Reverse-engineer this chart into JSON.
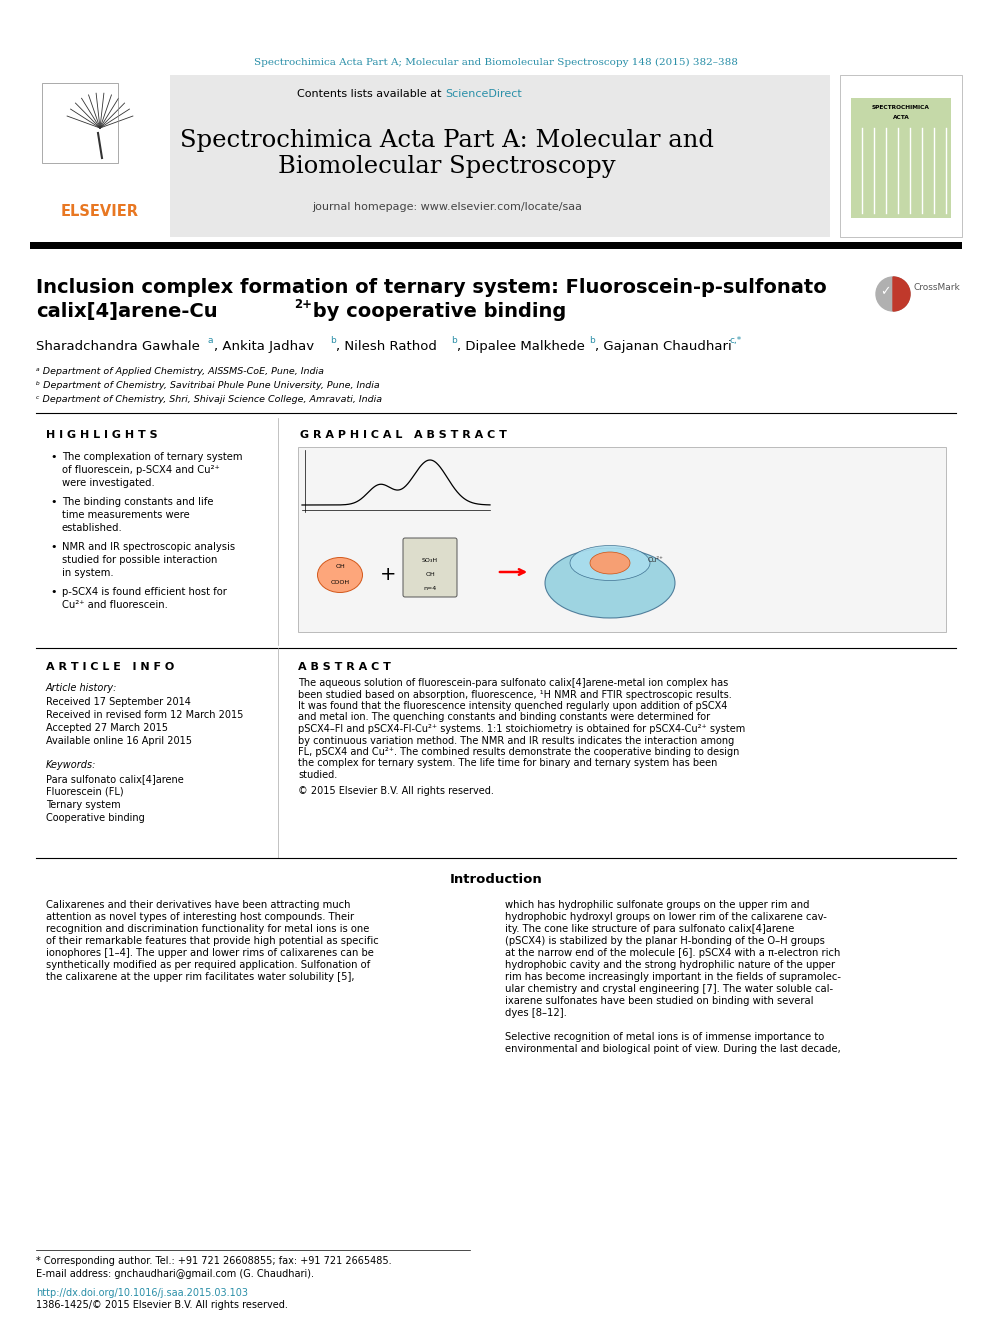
{
  "header_text": "Spectrochimica Acta Part A; Molecular and Biomolecular Spectroscopy 148 (2015) 382–388",
  "header_color": "#2a8fa8",
  "journal_name_line1": "Spectrochimica Acta Part A: Molecular and",
  "journal_name_line2": "Biomolecular Spectroscopy",
  "contents_text": "Contents lists available at ",
  "sciencedirect_text": "ScienceDirect",
  "sciencedirect_color": "#2a8fa8",
  "homepage_text": "journal homepage: www.elsevier.com/locate/saa",
  "elsevier_color": "#e87722",
  "article_title_line1": "Inclusion complex formation of ternary system: Fluoroscein-p-sulfonato",
  "article_title_line2": "calix[4]arene-Cu",
  "article_title_line2_super": "2+",
  "article_title_line3": " by cooperative binding",
  "affil_a": "ᵃ Department of Applied Chemistry, AISSMS-CoE, Pune, India",
  "affil_b": "ᵇ Department of Chemistry, Savitribai Phule Pune University, Pune, India",
  "affil_c": "ᶜ Department of Chemistry, Shri, Shivaji Science College, Amravati, India",
  "highlights_title": "H I G H L I G H T S",
  "highlight1": "The complexation of ternary system of fluorescein, p-SCX4 and Cu²⁺ were investigated.",
  "highlight2": "The binding constants and life time measurements were established.",
  "highlight3": "NMR and IR spectroscopic analysis studied for possible interaction in system.",
  "highlight4": "p-SCX4 is found efficient host for Cu²⁺ and fluorescein.",
  "graphical_abstract_title": "G R A P H I C A L   A B S T R A C T",
  "article_info_title": "A R T I C L E   I N F O",
  "article_history": "Article history:",
  "received": "Received 17 September 2014",
  "received_revised": "Received in revised form 12 March 2015",
  "accepted": "Accepted 27 March 2015",
  "available": "Available online 16 April 2015",
  "keywords_title": "Keywords:",
  "kw1": "Para sulfonato calix[4]arene",
  "kw2": "Fluorescein (FL)",
  "kw3": "Ternary system",
  "kw4": "Cooperative binding",
  "abstract_title": "A B S T R A C T",
  "abstract_text": "The aqueous solution of fluorescein-para sulfonato calix[4]arene-metal ion complex has been studied based on absorption, fluorescence, ¹H NMR and FTIR spectroscopic results. It was found that the fluorescence intensity quenched regularly upon addition of pSCX4 and metal ion. The quenching constants and binding constants were determined for pSCX4–Fl and pSCX4-Fl-Cu²⁺ systems. 1:1 stoichiometry is obtained for pSCX4-Cu²⁺ system by continuous variation method. The NMR and IR results indicates the interaction among FL, pSCX4 and Cu²⁺. The combined results demonstrate the cooperative binding to design the complex for ternary system. The life time for binary and ternary system has been studied.",
  "copyright_text": "© 2015 Elsevier B.V. All rights reserved.",
  "introduction_title": "Introduction",
  "intro_col1_lines": [
    "Calixarenes and their derivatives have been attracting much",
    "attention as novel types of interesting host compounds. Their",
    "recognition and discrimination functionality for metal ions is one",
    "of their remarkable features that provide high potential as specific",
    "ionophores [1–4]. The upper and lower rims of calixarenes can be",
    "synthetically modified as per required application. Sulfonation of",
    "the calixarene at the upper rim facilitates water solubility [5],"
  ],
  "intro_col2_lines": [
    "which has hydrophilic sulfonate groups on the upper rim and",
    "hydrophobic hydroxyl groups on lower rim of the calixarene cav-",
    "ity. The cone like structure of para sulfonato calix[4]arene",
    "(pSCX4) is stabilized by the planar H-bonding of the O–H groups",
    "at the narrow end of the molecule [6]. pSCX4 with a π-electron rich",
    "hydrophobic cavity and the strong hydrophilic nature of the upper",
    "rim has become increasingly important in the fields of supramolec-",
    "ular chemistry and crystal engineering [7]. The water soluble cal-",
    "ixarene sulfonates have been studied on binding with several",
    "dyes [8–12].",
    "",
    "Selective recognition of metal ions is of immense importance to",
    "environmental and biological point of view. During the last decade,"
  ],
  "footnote1": "* Corresponding author. Tel.: +91 721 26608855; fax: +91 721 2665485.",
  "footnote2": "E-mail address: gnchaudhari@gmail.com (G. Chaudhari).",
  "doi_text": "http://dx.doi.org/10.1016/j.saa.2015.03.103",
  "issn_text": "1386-1425/© 2015 Elsevier B.V. All rights reserved.",
  "bg_color": "#ffffff"
}
